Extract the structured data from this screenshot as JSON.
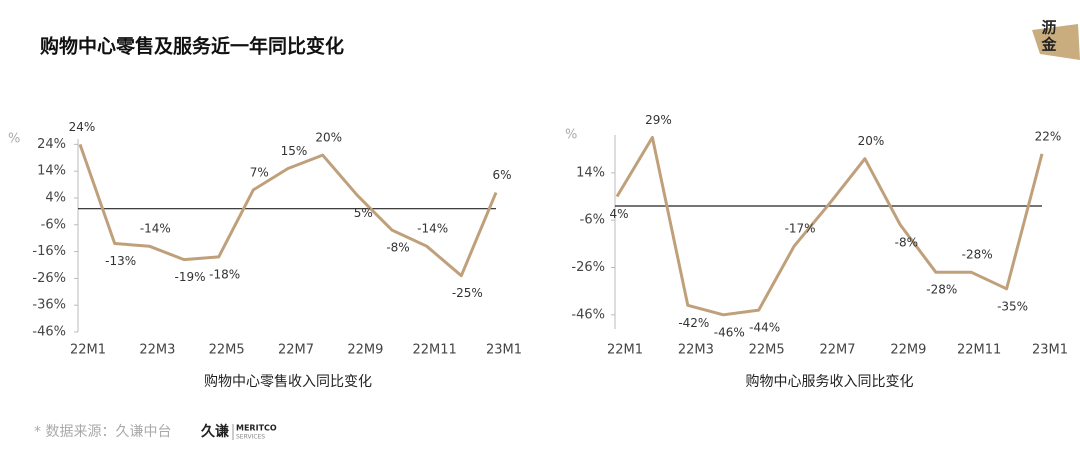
{
  "title": "购物中心零售及服务近一年同比变化",
  "logo": [
    "沥",
    "金"
  ],
  "source": "* 数据来源：久谦中台",
  "source_logo": {
    "cn": "久谦",
    "en": "MERITCO",
    "sub": "SERVICES"
  },
  "chart_data": [
    {
      "type": "line",
      "x_label": "购物中心零售收入同比变化",
      "y_unit": "%",
      "color": "#bfa07a",
      "categories": [
        "22M1",
        null,
        "22M3",
        null,
        "22M5",
        null,
        "22M7",
        null,
        "22M9",
        null,
        "22M11",
        null,
        "23M1"
      ],
      "values": [
        24,
        -13,
        -14,
        -19,
        -18,
        7,
        15,
        20,
        5,
        -8,
        -14,
        -25,
        6
      ],
      "value_labels": [
        "24%",
        "-13%",
        "-14%",
        "-19%",
        "-18%",
        "7%",
        "15%",
        "20%",
        "5%",
        "-8%",
        "-14%",
        "-25%",
        "6%"
      ],
      "ylim": [
        -46,
        26
      ],
      "yticks": [
        {
          "value": -46,
          "label": "-46%"
        },
        {
          "value": -36,
          "label": "-36%"
        },
        {
          "value": -26,
          "label": "-26%"
        },
        {
          "value": -16,
          "label": "-16%"
        },
        {
          "value": -6,
          "label": "-6%"
        },
        {
          "value": 4,
          "label": "4%"
        },
        {
          "value": 14,
          "label": "14%"
        },
        {
          "value": 24,
          "label": "24%"
        }
      ]
    },
    {
      "type": "line",
      "x_label": "购物中心服务收入同比变化",
      "y_unit": "%",
      "color": "#bfa07a",
      "categories": [
        "22M1",
        null,
        "22M3",
        null,
        "22M5",
        null,
        "22M7",
        null,
        "22M9",
        null,
        "22M11",
        null,
        "23M1"
      ],
      "values": [
        4,
        29,
        -42,
        -46,
        -44,
        -17,
        1,
        20,
        -8,
        -28,
        -28,
        -35,
        22
      ],
      "value_labels": [
        "4%",
        "29%",
        "-42%",
        "-46%",
        "-44%",
        "-17%",
        null,
        "20%",
        "-8%",
        "-28%",
        "-28%",
        "-35%",
        "22%"
      ],
      "ylim": [
        -52,
        30
      ],
      "yticks": [
        {
          "value": -46,
          "label": "-46%"
        },
        {
          "value": -26,
          "label": "-26%"
        },
        {
          "value": -6,
          "label": "-6%"
        },
        {
          "value": 14,
          "label": "14%"
        }
      ]
    }
  ]
}
